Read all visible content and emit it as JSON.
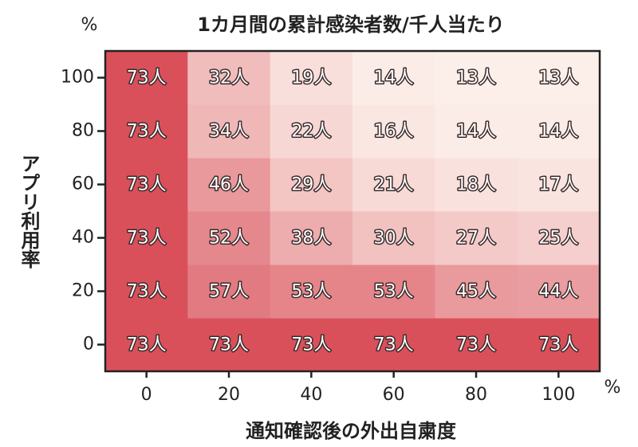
{
  "chart_data": {
    "type": "heatmap",
    "title": "1カ月間の累計感染者数/千人当たり",
    "xlabel": "通知確認後の外出自粛度",
    "ylabel": "アプリ利用率",
    "x_unit": "%",
    "y_unit": "%",
    "x": [
      0,
      20,
      40,
      60,
      80,
      100
    ],
    "y": [
      0,
      20,
      40,
      60,
      80,
      100
    ],
    "values": [
      [
        73,
        73,
        73,
        73,
        73,
        73
      ],
      [
        73,
        57,
        53,
        53,
        45,
        44
      ],
      [
        73,
        52,
        38,
        30,
        27,
        25
      ],
      [
        73,
        46,
        29,
        21,
        18,
        17
      ],
      [
        73,
        34,
        22,
        16,
        14,
        14
      ],
      [
        73,
        32,
        19,
        14,
        13,
        13
      ]
    ],
    "value_labels": [
      [
        "73人",
        "73人",
        "73人",
        "73人",
        "73人",
        "73人"
      ],
      [
        "73人",
        "57人",
        "53人",
        "53人",
        "45人",
        "44人"
      ],
      [
        "73人",
        "52人",
        "38人",
        "30人",
        "27人",
        "25人"
      ],
      [
        "73人",
        "46人",
        "29人",
        "21人",
        "18人",
        "17人"
      ],
      [
        "73人",
        "34人",
        "22人",
        "16人",
        "14人",
        "14人"
      ],
      [
        "73人",
        "32人",
        "19人",
        "14人",
        "13人",
        "13人"
      ]
    ],
    "colormap": [
      "#fcefe9",
      "#d9505b"
    ]
  }
}
